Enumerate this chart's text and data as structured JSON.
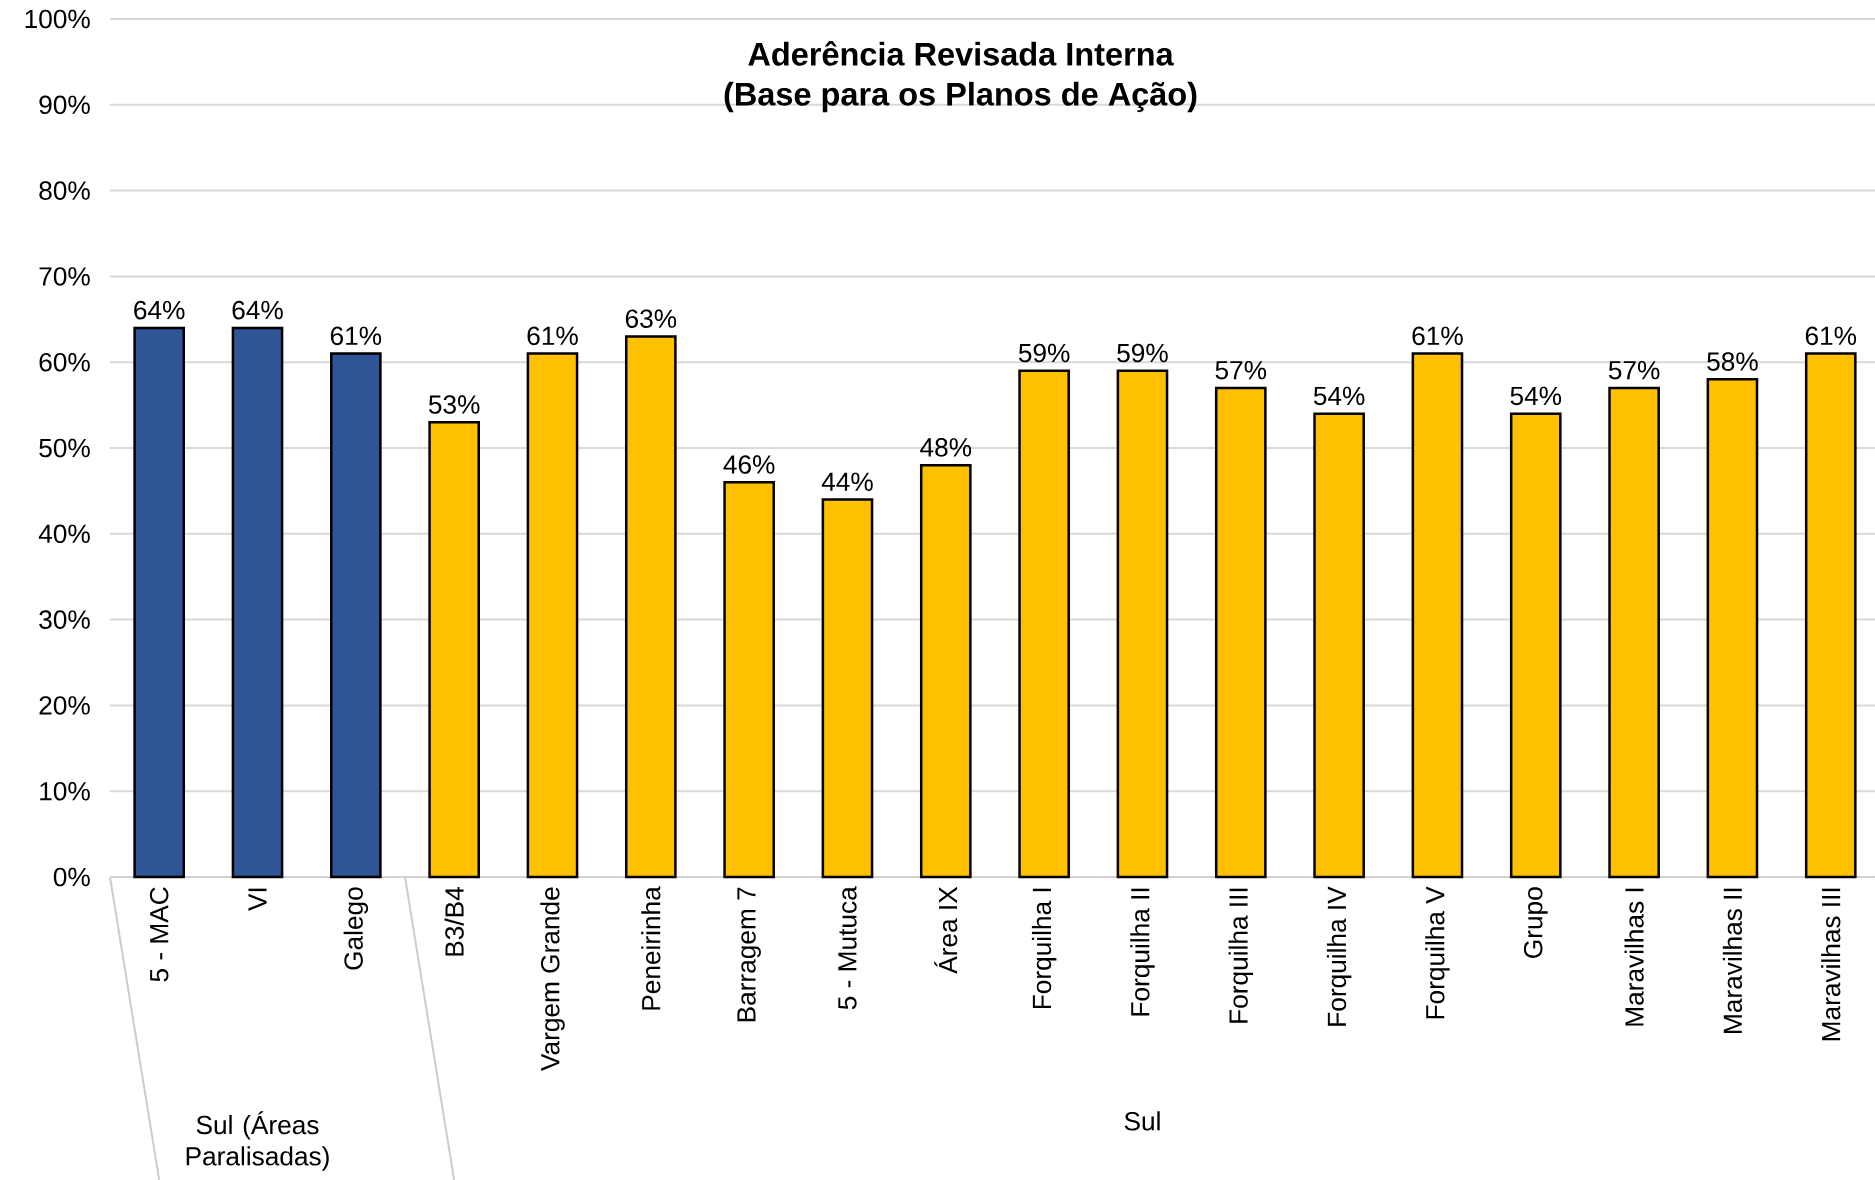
{
  "chart_data": {
    "type": "bar",
    "title": "Aderência Revisada Interna",
    "subtitle": "(Base para os Planos de Ação)",
    "categories": [
      "5 - MAC",
      "VI",
      "Galego",
      "B3/B4",
      "Vargem Grande",
      "Peneirinha",
      "Barragem 7",
      "5 - Mutuca",
      "Área IX",
      "Forquilha I",
      "Forquilha II",
      "Forquilha III",
      "Forquilha IV",
      "Forquilha V",
      "Grupo",
      "Maravilhas I",
      "Maravilhas II",
      "Maravilhas III"
    ],
    "values": [
      64,
      64,
      61,
      53,
      61,
      63,
      46,
      44,
      48,
      59,
      59,
      57,
      54,
      61,
      54,
      57,
      58,
      61
    ],
    "value_labels": [
      "64%",
      "64%",
      "61%",
      "53%",
      "61%",
      "63%",
      "46%",
      "44%",
      "48%",
      "59%",
      "59%",
      "57%",
      "54%",
      "61%",
      "54%",
      "57%",
      "58%",
      "61%"
    ],
    "colors": [
      "#2f5597",
      "#2f5597",
      "#2f5597",
      "#ffc000",
      "#ffc000",
      "#ffc000",
      "#ffc000",
      "#ffc000",
      "#ffc000",
      "#ffc000",
      "#ffc000",
      "#ffc000",
      "#ffc000",
      "#ffc000",
      "#ffc000",
      "#ffc000",
      "#ffc000",
      "#ffc000"
    ],
    "ylim": [
      0,
      100
    ],
    "yticks": [
      {
        "value": 0,
        "label": "0%"
      },
      {
        "value": 10,
        "label": "10%"
      },
      {
        "value": 20,
        "label": "20%"
      },
      {
        "value": 30,
        "label": "30%"
      },
      {
        "value": 40,
        "label": "40%"
      },
      {
        "value": 50,
        "label": "50%"
      },
      {
        "value": 60,
        "label": "60%"
      },
      {
        "value": 70,
        "label": "70%"
      },
      {
        "value": 80,
        "label": "80%"
      },
      {
        "value": 90,
        "label": "90%"
      },
      {
        "value": 100,
        "label": "100%"
      }
    ],
    "grid": "y",
    "annotations": [
      "Sul (Áreas Paralisadas)",
      "Sul"
    ]
  }
}
